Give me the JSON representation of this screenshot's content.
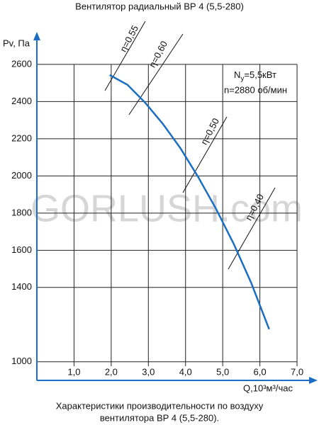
{
  "chart_data": {
    "type": "line",
    "title": "Вентилятор радиальный ВР 4 (5,5-280)",
    "y_label": "Pv, Па",
    "x_label": "Q,10³м³/час",
    "caption": [
      "Характеристики производительности по воздуху",
      "вентилятора  ВР 4 (5,5-280)."
    ],
    "watermark": "GORLUSH.com",
    "power": [
      "N",
      "y",
      "=5,5кВт"
    ],
    "speed": "n=2880 об/мин",
    "efficiency_lines": [
      "η=0,55",
      "η=0,60",
      "η=0,50",
      "η=0,40"
    ],
    "xlim": [
      0,
      7.4
    ],
    "ylim": [
      900,
      2775
    ],
    "xticks": [
      {
        "value": 1,
        "label": "1,0"
      },
      {
        "value": 2,
        "label": "2,0"
      },
      {
        "value": 3,
        "label": "3,0"
      },
      {
        "value": 4,
        "label": "4,0"
      },
      {
        "value": 5,
        "label": "5,0"
      },
      {
        "value": 6,
        "label": "6,0"
      },
      {
        "value": 7,
        "label": "7,0"
      }
    ],
    "yticks": [
      1000,
      1400,
      1600,
      1800,
      2000,
      2200,
      2400,
      2600
    ],
    "grid": true,
    "series": [
      {
        "color": "#1b6ec2",
        "x": [
          1.96,
          2.44,
          2.91,
          3.39,
          3.87,
          4.34,
          4.82,
          5.3,
          5.77,
          6.25
        ],
        "values": [
          2543,
          2490,
          2395,
          2280,
          2147,
          1994,
          1823,
          1633,
          1423,
          1175
        ]
      }
    ]
  }
}
